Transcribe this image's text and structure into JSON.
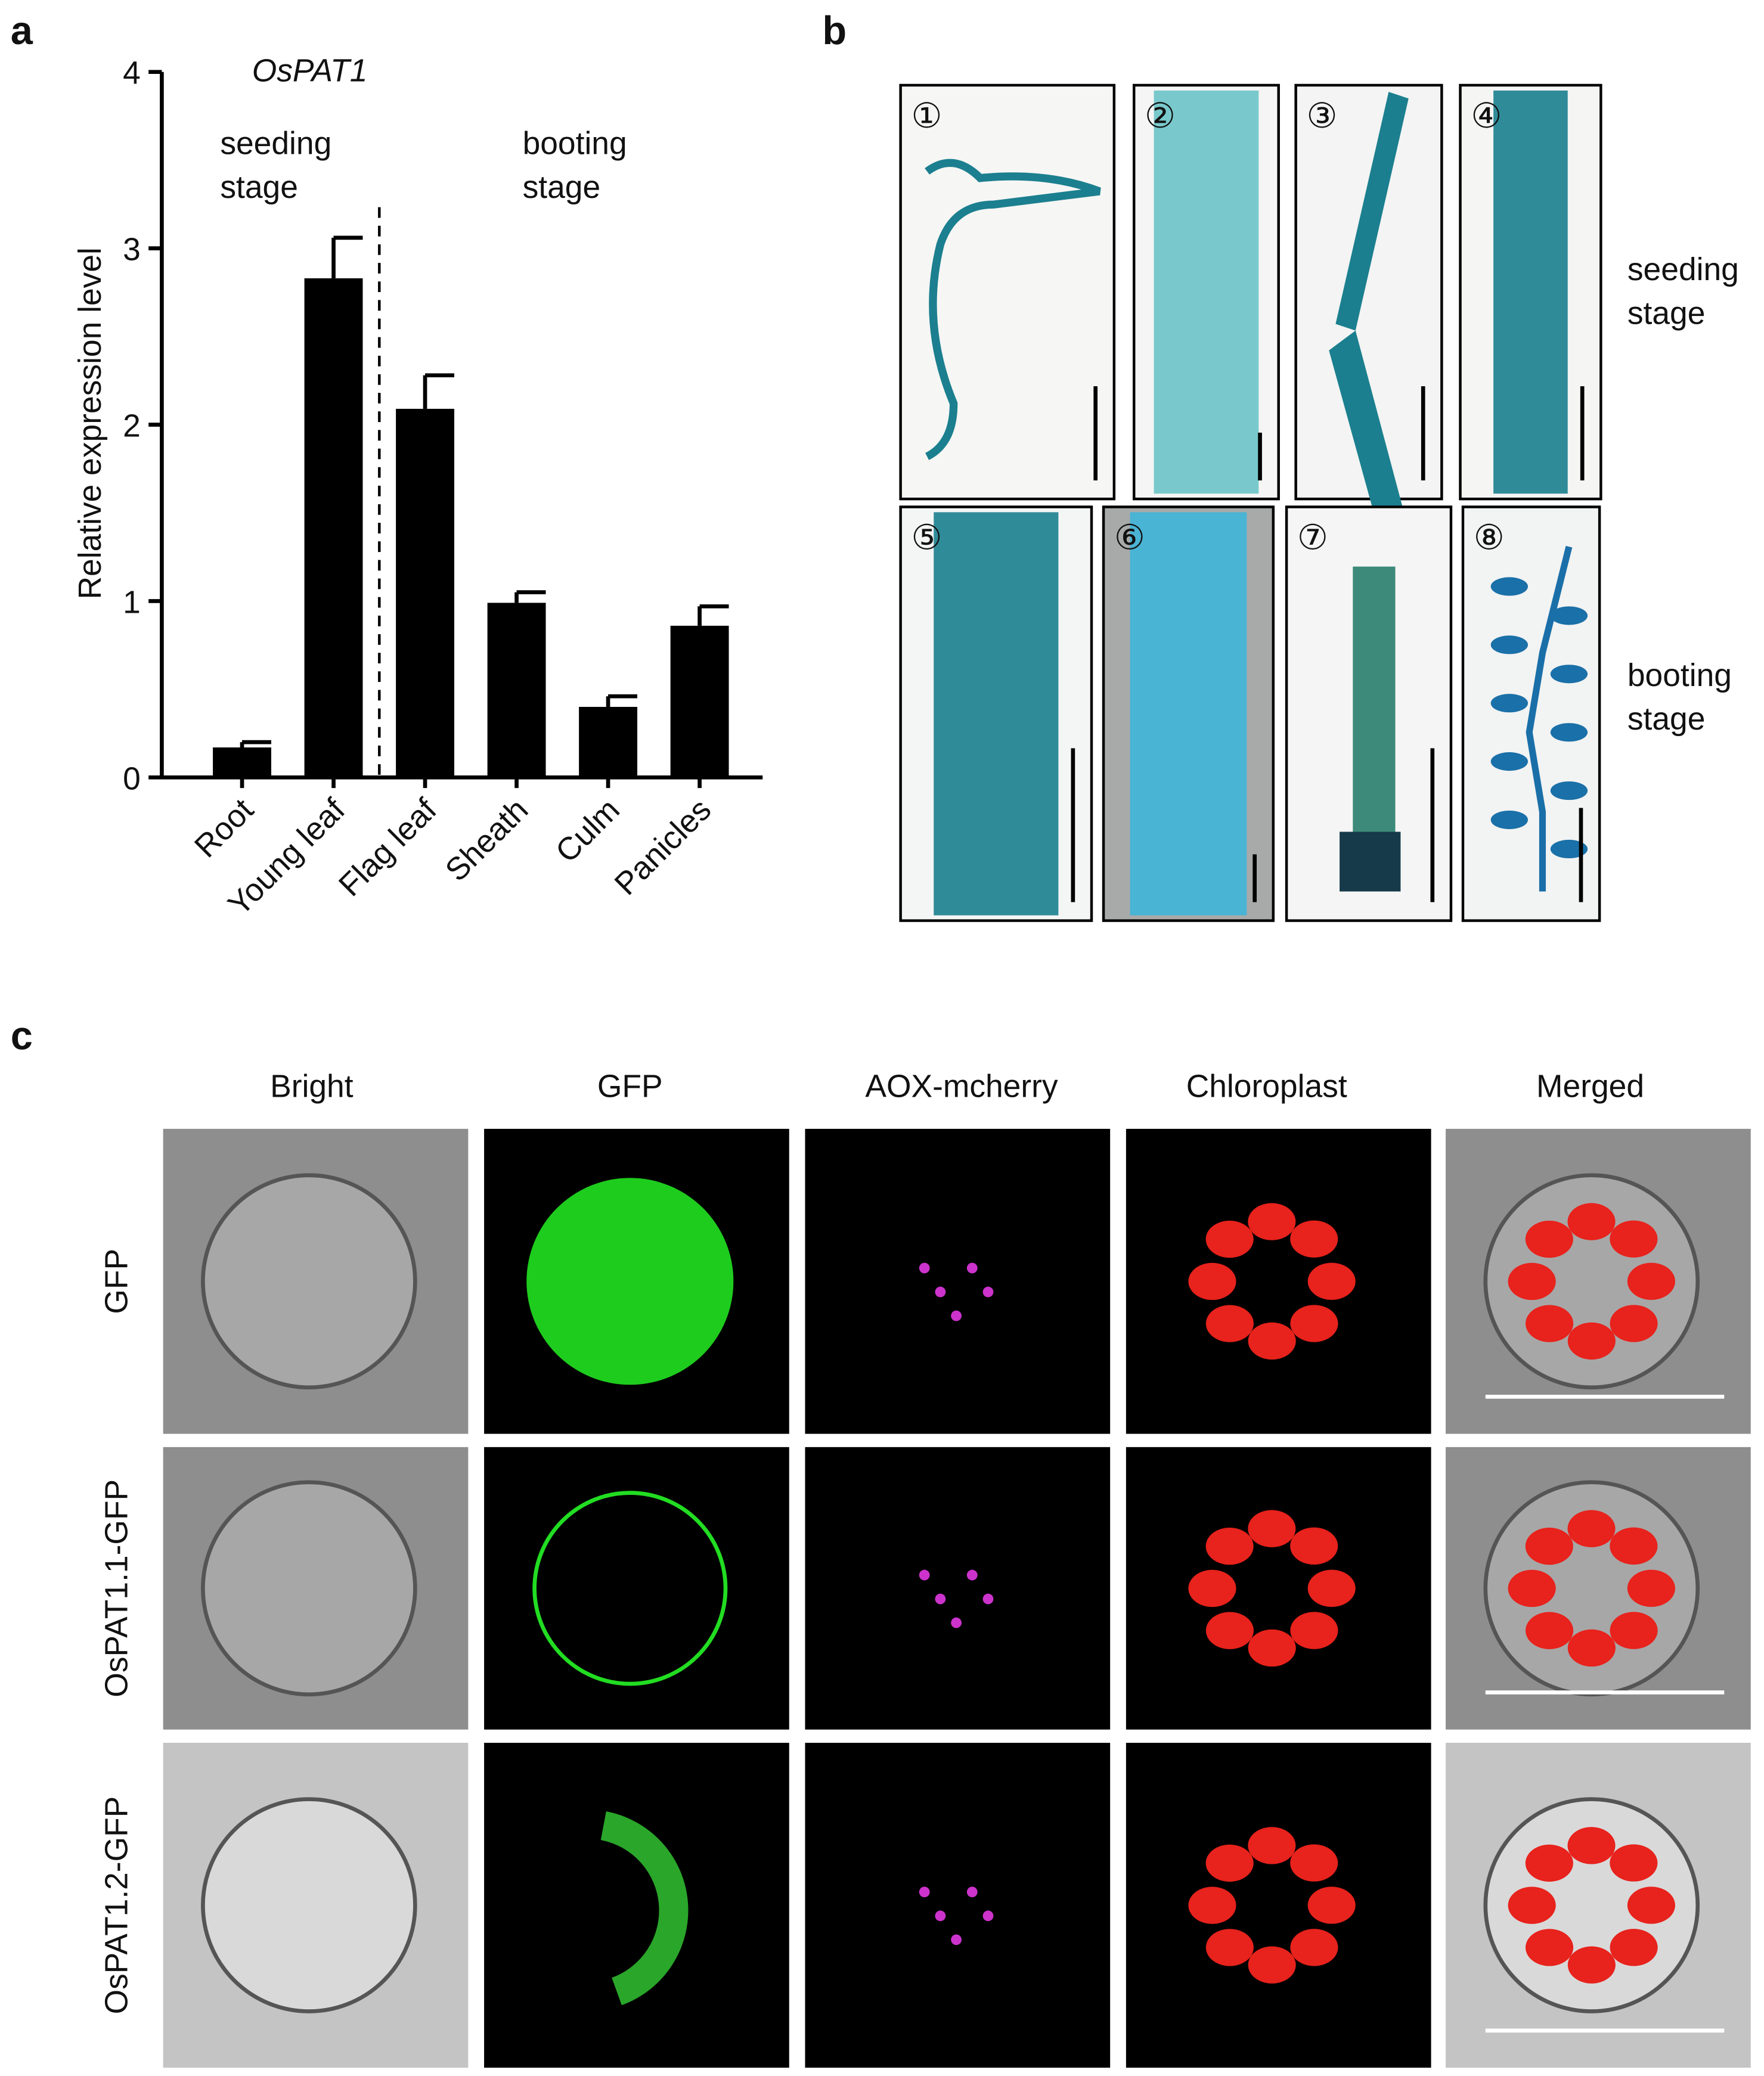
{
  "chart_data": {
    "type": "bar",
    "title": "OsPAT1",
    "y_label": "Relative expression level",
    "categories": [
      "Root",
      "Young leaf",
      "Flag leaf",
      "Sheath",
      "Culm",
      "Panicles"
    ],
    "values": [
      0.17,
      2.83,
      2.09,
      0.99,
      0.4,
      0.86
    ],
    "errors": [
      0.03,
      0.23,
      0.19,
      0.06,
      0.06,
      0.11
    ],
    "color": "#000000",
    "ylim": [
      0,
      4
    ],
    "yticks": [
      0,
      1,
      2,
      3,
      4
    ],
    "annotations": [
      {
        "lines": [
          "seeding",
          "stage"
        ]
      },
      {
        "lines": [
          "booting",
          "stage"
        ]
      }
    ]
  },
  "panel_labels": [
    "a",
    "b",
    "c"
  ],
  "panel_b": {
    "images": [
      "①",
      "②",
      "③",
      "④",
      "⑤",
      "⑥",
      "⑦",
      "⑧"
    ],
    "row_labels": [
      {
        "lines": [
          "seeding",
          "stage"
        ]
      },
      {
        "lines": [
          "booting",
          "stage"
        ]
      }
    ]
  },
  "panel_c": {
    "columns": [
      "Bright",
      "GFP",
      "AOX-mcherry",
      "Chloroplast",
      "Merged"
    ],
    "rows": [
      "GFP",
      "OsPAT1.1-GFP",
      "OsPAT1.2-GFP"
    ]
  }
}
